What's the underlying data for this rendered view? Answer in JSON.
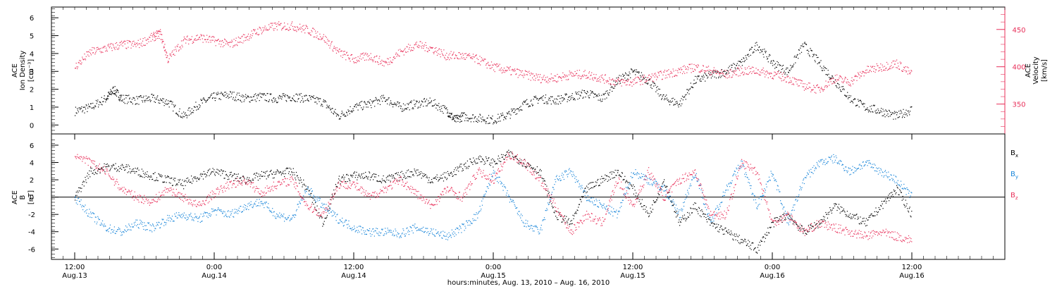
{
  "chart_data": [
    {
      "type": "scatter",
      "panel": "top",
      "ylabel": "ACE Ion Density [cm⁻³]",
      "ylabel_lines": [
        "ACE",
        "Ion Density",
        "[cm⁻³]"
      ],
      "ylim": [
        -0.5,
        6.6
      ],
      "yticks": [
        0,
        1,
        2,
        3,
        4,
        5,
        6
      ],
      "y2label": "ACE Velocity [km/s]",
      "y2label_lines": [
        "ACE",
        "Velocity",
        "[km/s]"
      ],
      "y2lim": [
        310,
        480
      ],
      "y2ticks": [
        350,
        400,
        450
      ],
      "y2color": "#e8305a",
      "series": [
        {
          "name": "Ion Density",
          "color": "#000000",
          "x": [
            0,
            2,
            4,
            5,
            6,
            8,
            10,
            12,
            14,
            16,
            18,
            20,
            22,
            24,
            26,
            28,
            30,
            32,
            34,
            36,
            38,
            40,
            42,
            44,
            46,
            48,
            49,
            50,
            52,
            54,
            56,
            58,
            60,
            62,
            64,
            66,
            68,
            70,
            72,
            74,
            76,
            78,
            80,
            82,
            84,
            86,
            88,
            90,
            92,
            94,
            96,
            98,
            100,
            102,
            104,
            106,
            108
          ],
          "y": [
            0.8,
            1.0,
            1.5,
            2.0,
            1.5,
            1.4,
            1.5,
            1.3,
            0.5,
            1.2,
            1.6,
            1.7,
            1.5,
            1.6,
            1.5,
            1.6,
            1.5,
            1.3,
            0.5,
            1.0,
            1.2,
            1.5,
            1.0,
            1.2,
            1.3,
            0.8,
            0.3,
            0.5,
            0.4,
            0.3,
            0.6,
            1.2,
            1.5,
            1.4,
            1.6,
            1.8,
            1.5,
            2.5,
            3.0,
            2.5,
            1.5,
            1.2,
            2.5,
            2.8,
            3.0,
            3.5,
            4.5,
            3.5,
            3.0,
            4.5,
            3.5,
            2.5,
            1.5,
            1.0,
            0.8,
            0.5,
            0.9
          ]
        },
        {
          "name": "Velocity",
          "color": "#e8305a",
          "x": [
            0,
            2,
            4,
            6,
            8,
            10,
            11,
            12,
            14,
            16,
            18,
            20,
            22,
            24,
            26,
            28,
            30,
            32,
            34,
            36,
            38,
            40,
            42,
            44,
            46,
            48,
            50,
            52,
            54,
            56,
            58,
            60,
            62,
            64,
            66,
            68,
            70,
            72,
            74,
            76,
            78,
            80,
            82,
            84,
            86,
            88,
            90,
            92,
            94,
            96,
            98,
            100,
            102,
            104,
            106,
            108
          ],
          "y": [
            400,
            420,
            425,
            430,
            430,
            440,
            445,
            410,
            435,
            440,
            435,
            430,
            440,
            450,
            455,
            455,
            450,
            440,
            420,
            410,
            415,
            405,
            420,
            430,
            425,
            415,
            415,
            410,
            400,
            395,
            390,
            385,
            385,
            390,
            390,
            385,
            380,
            380,
            385,
            390,
            395,
            400,
            395,
            390,
            395,
            395,
            390,
            385,
            375,
            370,
            385,
            380,
            395,
            400,
            405,
            390
          ]
        }
      ]
    },
    {
      "type": "scatter",
      "panel": "bottom",
      "ylabel": "ACE B [nT]",
      "ylabel_lines": [
        "ACE",
        "B",
        "[nT]"
      ],
      "ylim": [
        -7.2,
        7.3
      ],
      "yticks": [
        -6,
        -4,
        -2,
        0,
        2,
        4,
        6
      ],
      "legend": [
        {
          "label": "B",
          "sub": "x",
          "color": "#000000"
        },
        {
          "label": "B",
          "sub": "y",
          "color": "#1a86d9"
        },
        {
          "label": "B",
          "sub": "z",
          "color": "#e8305a"
        }
      ],
      "series": [
        {
          "name": "Bx",
          "color": "#000000",
          "x": [
            0,
            2,
            4,
            6,
            8,
            10,
            12,
            14,
            16,
            18,
            20,
            22,
            24,
            26,
            28,
            30,
            32,
            34,
            36,
            38,
            40,
            42,
            44,
            46,
            48,
            50,
            52,
            54,
            56,
            58,
            60,
            62,
            64,
            66,
            68,
            70,
            72,
            74,
            76,
            78,
            80,
            82,
            84,
            86,
            88,
            90,
            92,
            94,
            96,
            98,
            100,
            102,
            104,
            106,
            108
          ],
          "y": [
            0,
            3,
            3.5,
            3.5,
            3,
            2.5,
            2,
            1.5,
            2.5,
            3,
            2.5,
            2,
            2.5,
            2.8,
            3,
            1,
            -3,
            2,
            2.5,
            2.5,
            2,
            2.5,
            3,
            2,
            2.5,
            3.5,
            4.5,
            4,
            5,
            4,
            3,
            -2,
            -3,
            1,
            2,
            3,
            1,
            -2,
            2,
            -3,
            -1,
            -3,
            -4,
            -5,
            -6,
            -3,
            -2,
            -4,
            -3,
            -1,
            -2,
            -3,
            -1,
            1,
            -2
          ]
        },
        {
          "name": "By",
          "color": "#1a86d9",
          "x": [
            0,
            2,
            4,
            6,
            8,
            10,
            12,
            14,
            16,
            18,
            20,
            22,
            24,
            26,
            28,
            30,
            32,
            34,
            36,
            38,
            40,
            42,
            44,
            46,
            48,
            50,
            52,
            54,
            56,
            58,
            60,
            62,
            64,
            66,
            68,
            70,
            72,
            74,
            76,
            78,
            80,
            82,
            84,
            86,
            88,
            90,
            92,
            94,
            96,
            98,
            100,
            102,
            104,
            106,
            108
          ],
          "y": [
            0,
            -2,
            -3.5,
            -4,
            -3,
            -3.5,
            -2.5,
            -2,
            -2.5,
            -1.5,
            -2,
            -1,
            -0.5,
            -2,
            -2.5,
            1,
            -1,
            -2.5,
            -3.5,
            -4,
            -4,
            -4.2,
            -3.5,
            -4,
            -4.5,
            -3.5,
            -2,
            3,
            0,
            -3,
            -4,
            2,
            3,
            0,
            -1,
            -2,
            3,
            2,
            1,
            -2,
            3,
            -3,
            1,
            4,
            -1,
            3,
            -3,
            2,
            4,
            4.5,
            3,
            4,
            3,
            2,
            0
          ]
        },
        {
          "name": "Bz",
          "color": "#e8305a",
          "x": [
            0,
            2,
            4,
            6,
            8,
            10,
            12,
            14,
            16,
            18,
            20,
            22,
            24,
            26,
            28,
            30,
            32,
            34,
            36,
            38,
            40,
            42,
            44,
            46,
            48,
            50,
            52,
            54,
            56,
            58,
            60,
            62,
            64,
            66,
            68,
            70,
            72,
            74,
            76,
            78,
            80,
            82,
            84,
            86,
            88,
            90,
            92,
            94,
            96,
            98,
            100,
            102,
            104,
            106,
            108
          ],
          "y": [
            5,
            4,
            3,
            1,
            0,
            -0.5,
            1,
            0,
            -1,
            0.5,
            1.5,
            2,
            0.5,
            1.5,
            2,
            -1,
            -2,
            1.5,
            1.5,
            0,
            1,
            2,
            0.5,
            -1,
            1,
            0,
            3,
            2,
            5,
            4,
            2,
            -1,
            -4,
            -2,
            -3,
            2,
            -1,
            3,
            0,
            2,
            3,
            -2,
            -2,
            4,
            3,
            -3,
            -2,
            -4,
            -3,
            -3.5,
            -4,
            -4.5,
            -4,
            -4.5,
            -5
          ]
        }
      ]
    }
  ],
  "xaxis": {
    "xlabel": "hours:minutes, Aug. 13, 2010 – Aug. 16, 2010",
    "xlim": [
      -3,
      120
    ],
    "ticks": [
      {
        "x": 0,
        "time": "12:00",
        "date": "Aug.13"
      },
      {
        "x": 18,
        "time": "0:00",
        "date": "Aug.14"
      },
      {
        "x": 36,
        "time": "12:00",
        "date": "Aug.14"
      },
      {
        "x": 54,
        "time": "0:00",
        "date": "Aug.15"
      },
      {
        "x": 72,
        "time": "12:00",
        "date": "Aug.15"
      },
      {
        "x": 90,
        "time": "0:00",
        "date": "Aug.16"
      },
      {
        "x": 108,
        "time": "12:00",
        "date": "Aug.16"
      }
    ]
  }
}
